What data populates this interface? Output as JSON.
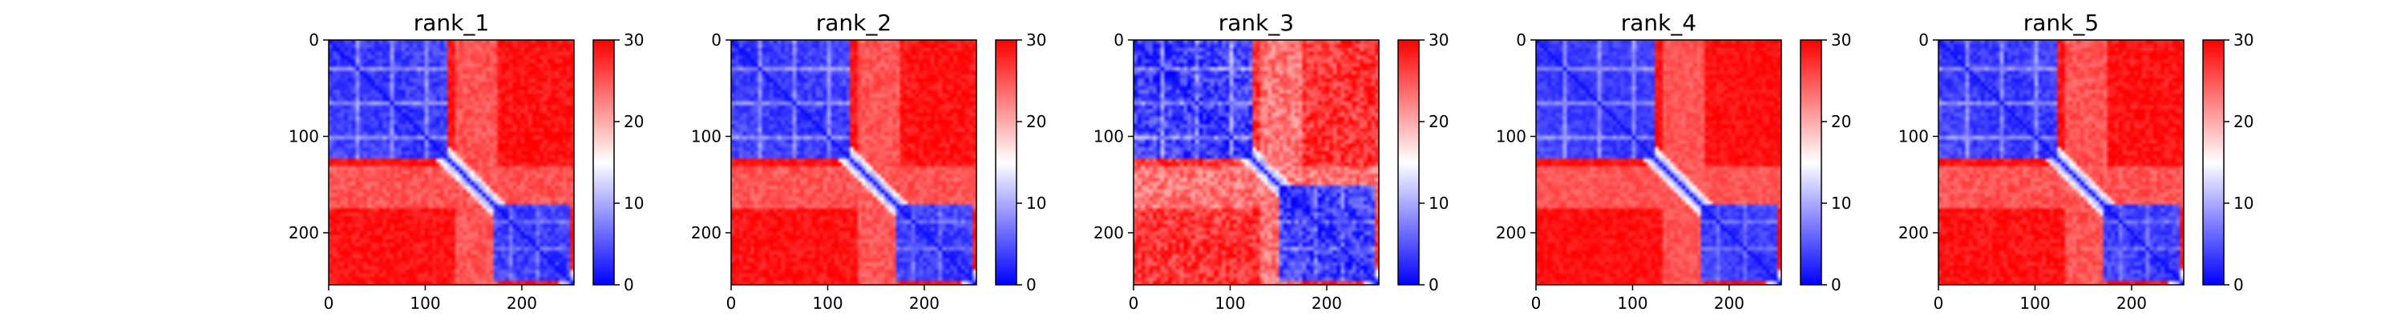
{
  "chart_data": {
    "type": "heatmap",
    "colormap": {
      "name": "bwr",
      "low": "#0000ff",
      "mid": "#ffffff",
      "high": "#ff0000",
      "range": [
        0,
        30
      ],
      "ticks": [
        0,
        10,
        20,
        30
      ],
      "tick_labels": [
        "0",
        "10",
        "20",
        "30"
      ]
    },
    "axes": {
      "x_range": [
        0,
        254
      ],
      "y_range": [
        0,
        254
      ],
      "y_inverted": true,
      "x_ticks": [
        0,
        100,
        200
      ],
      "x_tick_labels": [
        "0",
        "100",
        "200"
      ],
      "y_ticks": [
        0,
        100,
        200
      ],
      "y_tick_labels": [
        "0",
        "100",
        "200"
      ],
      "grid": false
    },
    "description": "Predicted aligned error matrices (values 0-30) for five ranked models; low error (blue) on the diagonal and within domain blocks near residues 0-125 and 170-250, high error (red) between domains.",
    "panels": [
      {
        "title": "rank_1",
        "domainA": [
          0,
          125
        ],
        "domainB": [
          170,
          250
        ],
        "cross_error": 30,
        "noise": 2.0
      },
      {
        "title": "rank_2",
        "domainA": [
          0,
          125
        ],
        "domainB": [
          170,
          250
        ],
        "cross_error": 30,
        "noise": 2.0
      },
      {
        "title": "rank_3",
        "domainA": [
          0,
          125
        ],
        "domainB": [
          150,
          250
        ],
        "cross_error": 28,
        "noise": 3.5
      },
      {
        "title": "rank_4",
        "domainA": [
          0,
          125
        ],
        "domainB": [
          170,
          250
        ],
        "cross_error": 30,
        "noise": 1.5
      },
      {
        "title": "rank_5",
        "domainA": [
          0,
          125
        ],
        "domainB": [
          170,
          250
        ],
        "cross_error": 30,
        "noise": 2.0
      }
    ]
  }
}
